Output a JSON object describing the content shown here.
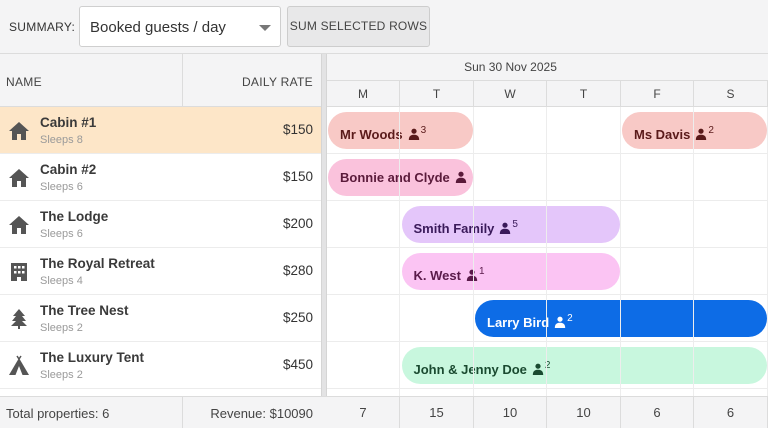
{
  "toolbar": {
    "summary_label": "SUMMARY:",
    "summary_select_value": "Booked guests / day",
    "sum_button_label": "SUM SELECTED ROWS"
  },
  "grid": {
    "name_header": "NAME",
    "rate_header": "DAILY RATE"
  },
  "timeline": {
    "date_header": "Sun 30 Nov 2025",
    "days": [
      "M",
      "T",
      "W",
      "T",
      "F",
      "S"
    ]
  },
  "resources": [
    {
      "name": "Cabin #1",
      "sleeps": "Sleeps 8",
      "rate": "$150",
      "icon": "house-icon",
      "selected": true
    },
    {
      "name": "Cabin #2",
      "sleeps": "Sleeps 6",
      "rate": "$150",
      "icon": "house-icon",
      "selected": false
    },
    {
      "name": "The Lodge",
      "sleeps": "Sleeps 6",
      "rate": "$200",
      "icon": "house-icon",
      "selected": false
    },
    {
      "name": "The Royal Retreat",
      "sleeps": "Sleeps 4",
      "rate": "$280",
      "icon": "building-icon",
      "selected": false
    },
    {
      "name": "The Tree Nest",
      "sleeps": "Sleeps 2",
      "rate": "$250",
      "icon": "tree-icon",
      "selected": false
    },
    {
      "name": "The Luxury Tent",
      "sleeps": "Sleeps 2",
      "rate": "$450",
      "icon": "tent-icon",
      "selected": false
    }
  ],
  "events": [
    {
      "row": 0,
      "name": "Mr Woods",
      "guests": "3",
      "start": 0,
      "end": 2,
      "bg": "#f8c9c6",
      "fg": "#5a1a1a"
    },
    {
      "row": 0,
      "name": "Ms Davis",
      "guests": "2",
      "start": 4,
      "end": 6,
      "bg": "#f8c9c6",
      "fg": "#5a1a1a"
    },
    {
      "row": 1,
      "name": "Bonnie and Clyde",
      "guests": "",
      "start": 0,
      "end": 2,
      "bg": "#fac2dc",
      "fg": "#5a1a3a"
    },
    {
      "row": 2,
      "name": "Smith Family",
      "guests": "5",
      "start": 1,
      "end": 4,
      "bg": "#e4c6fa",
      "fg": "#3a1a5a"
    },
    {
      "row": 3,
      "name": "K. West",
      "guests": "1",
      "start": 1,
      "end": 4,
      "bg": "#fbc4f3",
      "fg": "#5a1a4a"
    },
    {
      "row": 4,
      "name": "Larry Bird",
      "guests": "2",
      "start": 2,
      "end": 6,
      "bg": "#0d6ce6",
      "fg": "#ffffff"
    },
    {
      "row": 5,
      "name": "John & Jenny Doe",
      "guests": "2",
      "start": 1,
      "end": 6,
      "bg": "#c8f7de",
      "fg": "#1a4a30"
    }
  ],
  "footer": {
    "total_properties": "Total properties: 6",
    "revenue": "Revenue: $10090",
    "daily_sums": [
      "7",
      "15",
      "10",
      "10",
      "6",
      "6"
    ]
  }
}
